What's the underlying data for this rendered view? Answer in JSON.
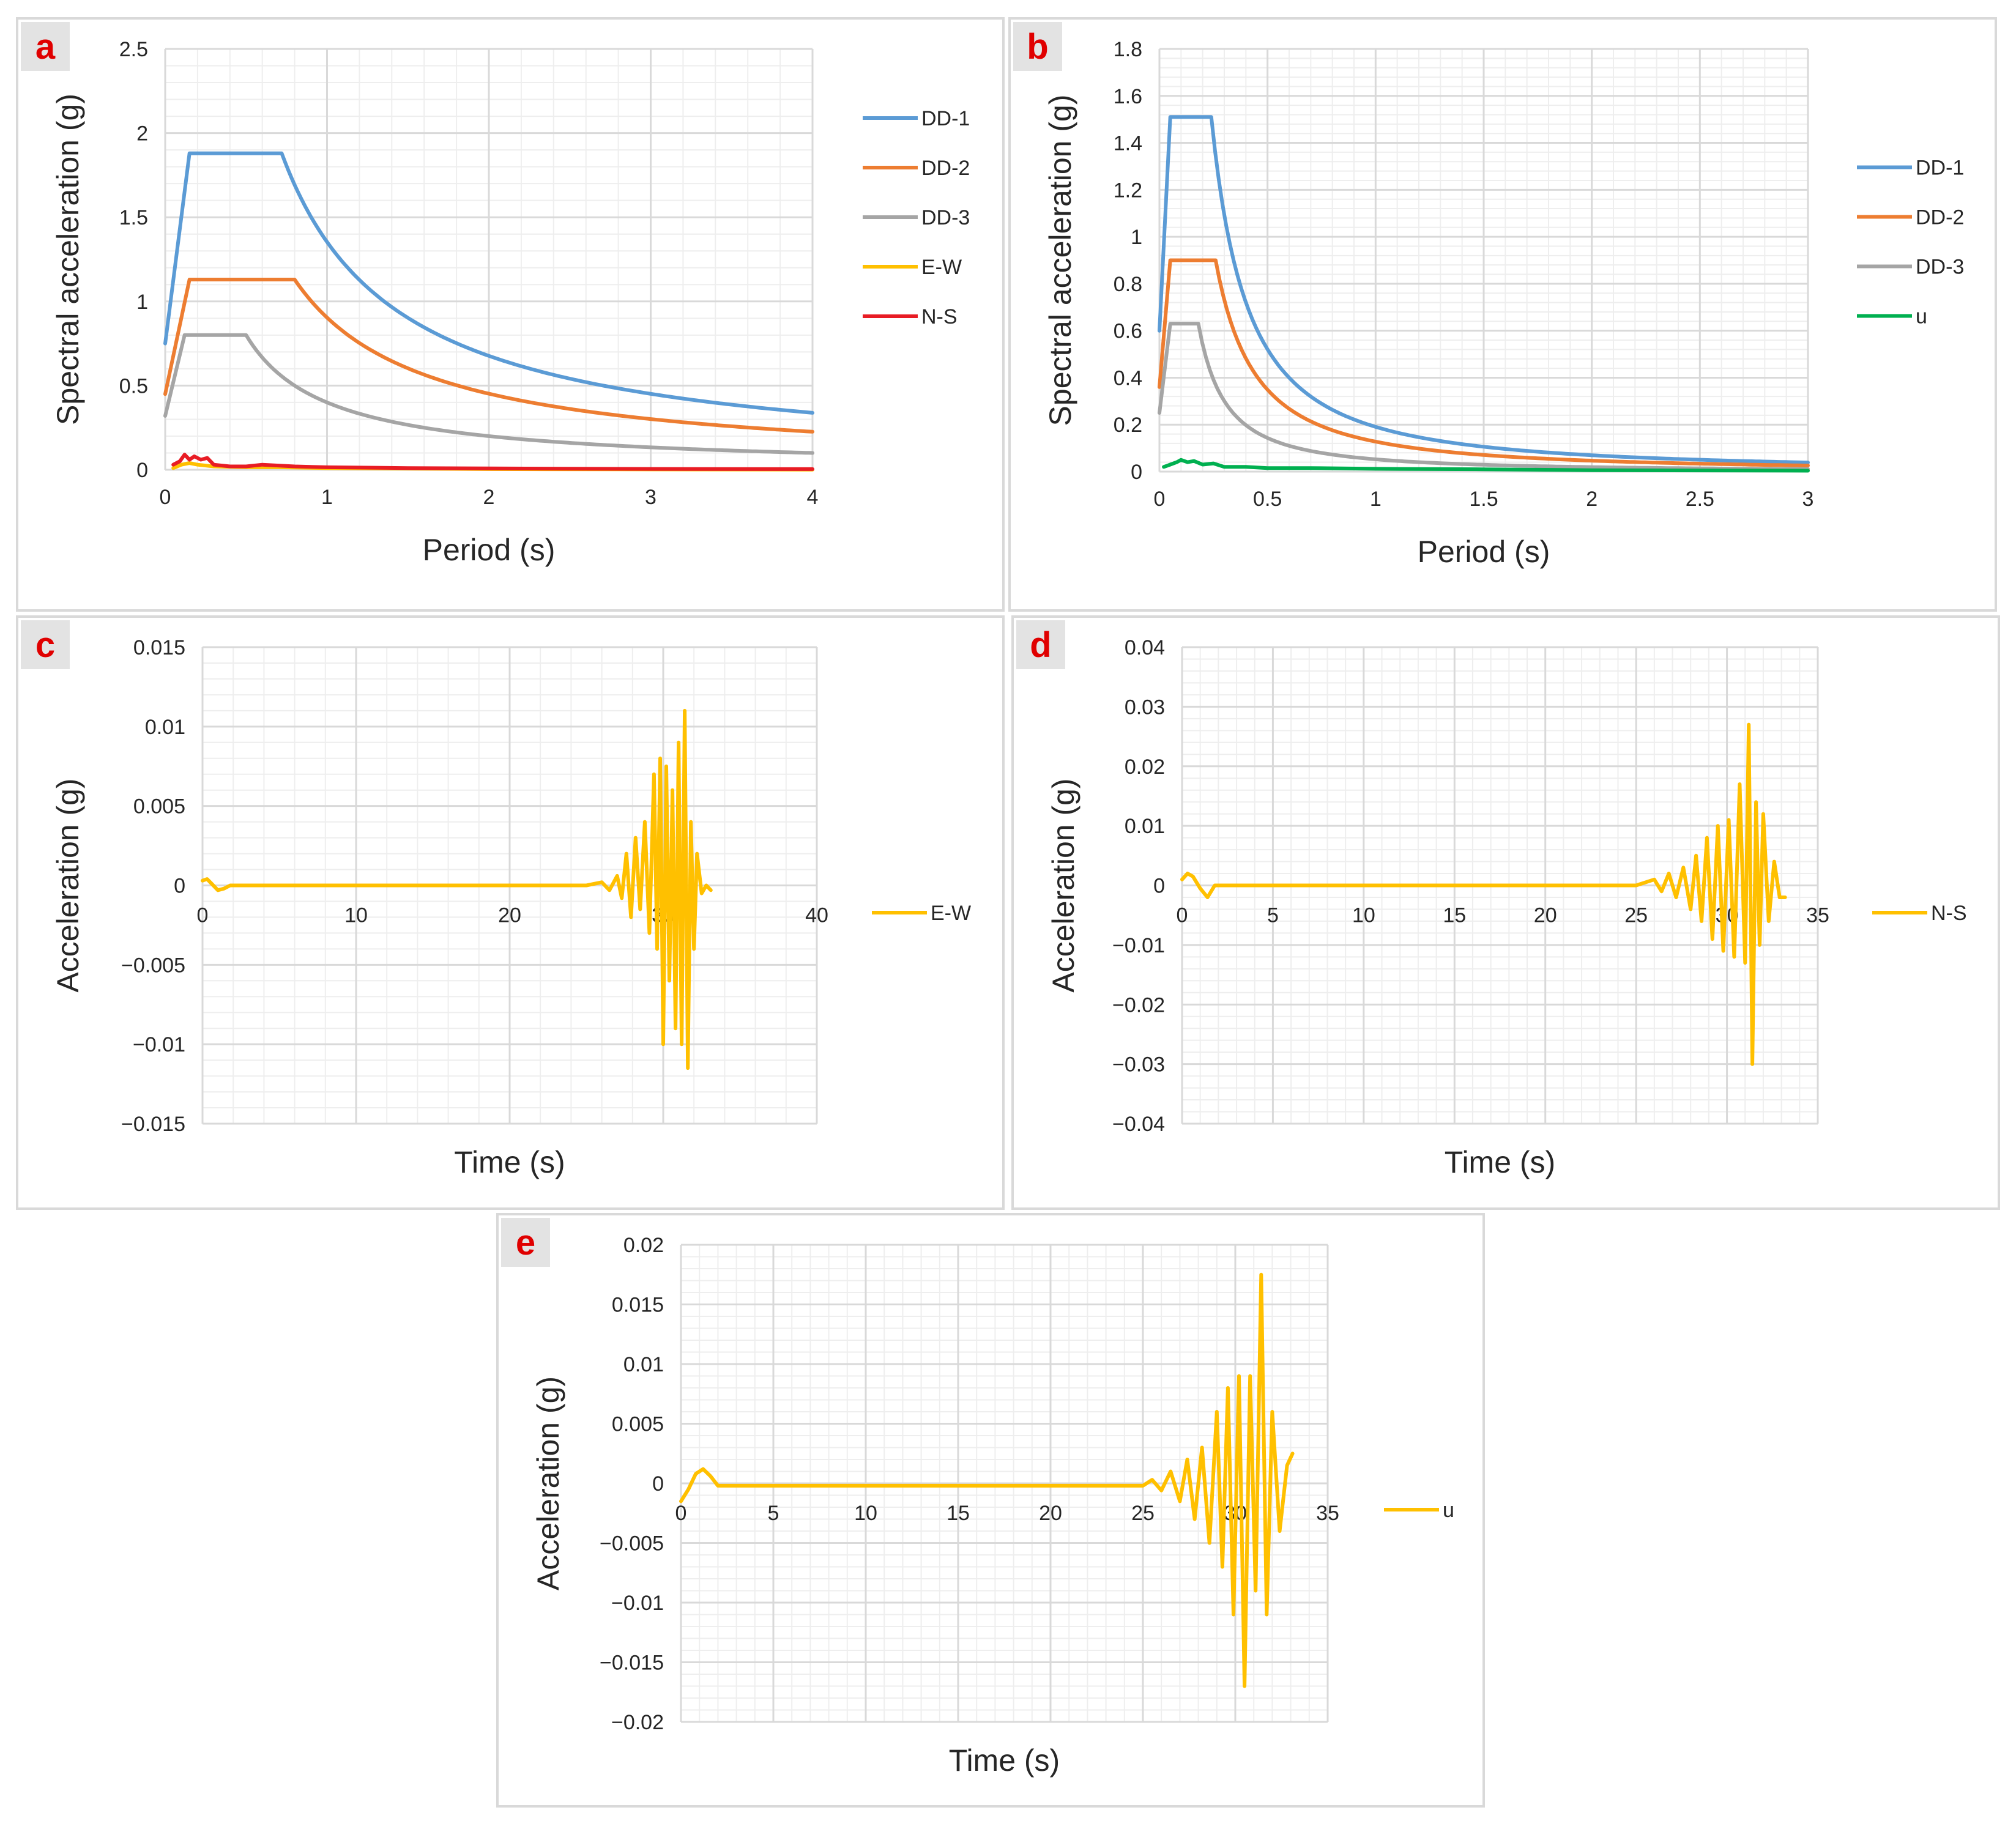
{
  "chart_data": [
    {
      "id": "a",
      "type": "line",
      "panel_label": "a",
      "xlabel": "Period (s)",
      "ylabel": "Spectral acceleration (g)",
      "xlim": [
        0,
        4
      ],
      "ylim": [
        0,
        2.5
      ],
      "xticks": [
        0,
        1,
        2,
        3,
        4
      ],
      "xtick_labels": [
        "0",
        "1",
        "2",
        "3",
        "4"
      ],
      "yticks": [
        0,
        0.5,
        1,
        1.5,
        2,
        2.5
      ],
      "ytick_labels": [
        "0",
        "0.5",
        "1",
        "1.5",
        "2",
        "2.5"
      ],
      "legend": "right",
      "series": [
        {
          "name": "DD-1",
          "color": "#5b9bd5",
          "kind": "spectrum",
          "pga": 0.75,
          "plateau": 1.88,
          "t_start": 0.15,
          "t_end": 0.72,
          "tail": "inverse"
        },
        {
          "name": "DD-2",
          "color": "#ed7d31",
          "kind": "spectrum",
          "pga": 0.45,
          "plateau": 1.13,
          "t_start": 0.15,
          "t_end": 0.8,
          "tail": "inverse"
        },
        {
          "name": "DD-3",
          "color": "#a5a5a5",
          "kind": "spectrum",
          "pga": 0.32,
          "plateau": 0.8,
          "t_start": 0.12,
          "t_end": 0.5,
          "tail": "inverse"
        },
        {
          "name": "E-W",
          "color": "#ffc000",
          "kind": "points",
          "x": [
            0.05,
            0.1,
            0.15,
            0.2,
            0.3,
            0.5,
            0.7,
            1.0,
            2.0,
            3.0,
            4.0
          ],
          "values": [
            0.01,
            0.03,
            0.04,
            0.03,
            0.02,
            0.015,
            0.015,
            0.01,
            0.004,
            0.002,
            0.001
          ]
        },
        {
          "name": "N-S",
          "color": "#e81c24",
          "kind": "points",
          "x": [
            0.05,
            0.09,
            0.12,
            0.15,
            0.18,
            0.22,
            0.26,
            0.3,
            0.4,
            0.5,
            0.6,
            0.7,
            0.8,
            1.0,
            1.5,
            2.0,
            3.0,
            4.0
          ],
          "values": [
            0.03,
            0.05,
            0.09,
            0.06,
            0.08,
            0.06,
            0.07,
            0.03,
            0.02,
            0.02,
            0.03,
            0.025,
            0.02,
            0.015,
            0.01,
            0.008,
            0.005,
            0.004
          ]
        }
      ]
    },
    {
      "id": "b",
      "type": "line",
      "panel_label": "b",
      "xlabel": "Period (s)",
      "ylabel": "Spectral acceleration (g)",
      "xlim": [
        0,
        3
      ],
      "ylim": [
        0,
        1.8
      ],
      "xticks": [
        0,
        0.5,
        1,
        1.5,
        2,
        2.5,
        3
      ],
      "xtick_labels": [
        "0",
        "0.5",
        "1",
        "1.5",
        "2",
        "2.5",
        "3"
      ],
      "yticks": [
        0,
        0.2,
        0.4,
        0.6,
        0.8,
        1,
        1.2,
        1.4,
        1.6,
        1.8
      ],
      "ytick_labels": [
        "0",
        "0.2",
        "0.4",
        "0.6",
        "0.8",
        "1",
        "1.2",
        "1.4",
        "1.6",
        "1.8"
      ],
      "legend": "right",
      "series": [
        {
          "name": "DD-1",
          "color": "#5b9bd5",
          "kind": "spectrum",
          "pga": 0.6,
          "plateau": 1.51,
          "t_start": 0.05,
          "t_end": 0.24,
          "tail": "inverse_square"
        },
        {
          "name": "DD-2",
          "color": "#ed7d31",
          "kind": "spectrum",
          "pga": 0.36,
          "plateau": 0.9,
          "t_start": 0.05,
          "t_end": 0.26,
          "tail": "inverse_square"
        },
        {
          "name": "DD-3",
          "color": "#a5a5a5",
          "kind": "spectrum",
          "pga": 0.25,
          "plateau": 0.63,
          "t_start": 0.05,
          "t_end": 0.18,
          "tail": "inverse_square"
        },
        {
          "name": "u",
          "color": "#00b050",
          "kind": "points",
          "x": [
            0.02,
            0.05,
            0.08,
            0.1,
            0.13,
            0.16,
            0.2,
            0.25,
            0.3,
            0.4,
            0.5,
            0.7,
            1.0,
            1.5,
            2.0,
            3.0
          ],
          "values": [
            0.02,
            0.03,
            0.04,
            0.05,
            0.04,
            0.045,
            0.03,
            0.035,
            0.02,
            0.02,
            0.015,
            0.015,
            0.012,
            0.01,
            0.006,
            0.004
          ]
        }
      ]
    },
    {
      "id": "c",
      "type": "line",
      "panel_label": "c",
      "xlabel": "Time (s)",
      "ylabel": "Acceleration (g)",
      "xlim": [
        0,
        40
      ],
      "ylim": [
        -0.015,
        0.015
      ],
      "xticks": [
        0,
        10,
        20,
        30,
        40
      ],
      "xtick_labels": [
        "0",
        "10",
        "20",
        "30",
        "40"
      ],
      "yticks": [
        -0.015,
        -0.01,
        -0.005,
        0,
        0.005,
        0.01,
        0.015
      ],
      "ytick_labels": [
        "-0.015",
        "-0.01",
        "-0.005",
        "0",
        "0.005",
        "0.01",
        "0.015"
      ],
      "legend": "right",
      "series": [
        {
          "name": "E-W",
          "color": "#ffc000",
          "kind": "points",
          "x": [
            0,
            0.3,
            0.6,
            1.0,
            1.4,
            1.8,
            2.2,
            5,
            10,
            15,
            20,
            25,
            26.0,
            26.5,
            27.0,
            27.3,
            27.6,
            27.9,
            28.2,
            28.5,
            28.8,
            29.1,
            29.4,
            29.6,
            29.8,
            30.0,
            30.2,
            30.4,
            30.6,
            30.8,
            31.0,
            31.2,
            31.4,
            31.6,
            31.8,
            32.0,
            32.2,
            32.5,
            32.8,
            33.1
          ],
          "values": [
            0.0003,
            0.0004,
            0.0001,
            -0.0003,
            -0.0002,
            0,
            0,
            0,
            0,
            0,
            0,
            0,
            0.0002,
            -0.0003,
            0.0006,
            -0.0008,
            0.002,
            -0.002,
            0.003,
            -0.0015,
            0.004,
            -0.003,
            0.007,
            -0.004,
            0.008,
            -0.01,
            0.0075,
            -0.006,
            0.006,
            -0.009,
            0.009,
            -0.01,
            0.011,
            -0.0115,
            0.004,
            -0.004,
            0.002,
            -0.0005,
            0,
            -0.0003
          ]
        }
      ]
    },
    {
      "id": "d",
      "type": "line",
      "panel_label": "d",
      "xlabel": "Time (s)",
      "ylabel": "Acceleration (g)",
      "xlim": [
        0,
        35
      ],
      "ylim": [
        -0.04,
        0.04
      ],
      "xticks": [
        0,
        5,
        10,
        15,
        20,
        25,
        30,
        35
      ],
      "xtick_labels": [
        "0",
        "5",
        "10",
        "15",
        "20",
        "25",
        "30",
        "35"
      ],
      "yticks": [
        -0.04,
        -0.03,
        -0.02,
        -0.01,
        0,
        0.01,
        0.02,
        0.03,
        0.04
      ],
      "ytick_labels": [
        "-0.04",
        "-0.03",
        "-0.02",
        "-0.01",
        "0",
        "0.01",
        "0.02",
        "0.03",
        "0.04"
      ],
      "legend": "right",
      "series": [
        {
          "name": "N-S",
          "color": "#ffc000",
          "kind": "points",
          "x": [
            0,
            0.3,
            0.6,
            1.0,
            1.4,
            1.8,
            5,
            10,
            15,
            20,
            25,
            26.0,
            26.4,
            26.8,
            27.2,
            27.6,
            28.0,
            28.3,
            28.6,
            28.9,
            29.2,
            29.5,
            29.8,
            30.1,
            30.4,
            30.7,
            31.0,
            31.2,
            31.4,
            31.6,
            31.8,
            32.0,
            32.3,
            32.6,
            32.9,
            33.2
          ],
          "values": [
            0.001,
            0.002,
            0.0015,
            -0.0005,
            -0.002,
            0,
            0,
            0,
            0,
            0,
            0,
            0.001,
            -0.001,
            0.002,
            -0.002,
            0.003,
            -0.004,
            0.005,
            -0.006,
            0.008,
            -0.009,
            0.01,
            -0.011,
            0.011,
            -0.012,
            0.017,
            -0.013,
            0.027,
            -0.03,
            0.014,
            -0.01,
            0.012,
            -0.006,
            0.004,
            -0.002,
            -0.002
          ]
        }
      ]
    },
    {
      "id": "e",
      "type": "line",
      "panel_label": "e",
      "xlabel": "Time (s)",
      "ylabel": "Acceleration (g)",
      "xlim": [
        0,
        35
      ],
      "ylim": [
        -0.02,
        0.02
      ],
      "xticks": [
        0,
        5,
        10,
        15,
        20,
        25,
        30,
        35
      ],
      "xtick_labels": [
        "0",
        "5",
        "10",
        "15",
        "20",
        "25",
        "30",
        "35"
      ],
      "yticks": [
        -0.02,
        -0.015,
        -0.01,
        -0.005,
        0,
        0.005,
        0.01,
        0.015,
        0.02
      ],
      "ytick_labels": [
        "-0.02",
        "-0.015",
        "-0.01",
        "-0.005",
        "0",
        "0.005",
        "0.01",
        "0.015",
        "0.02"
      ],
      "legend": "right",
      "series": [
        {
          "name": "u",
          "color": "#ffc000",
          "kind": "points",
          "x": [
            0,
            0.4,
            0.8,
            1.2,
            1.6,
            2.0,
            5,
            10,
            15,
            20,
            25,
            25.5,
            26.0,
            26.5,
            27.0,
            27.4,
            27.8,
            28.2,
            28.6,
            29.0,
            29.3,
            29.6,
            29.9,
            30.2,
            30.5,
            30.8,
            31.1,
            31.4,
            31.7,
            32.0,
            32.4,
            32.8,
            33.1
          ],
          "values": [
            -0.0015,
            -0.0005,
            0.0008,
            0.0012,
            0.0006,
            -0.0002,
            -0.0002,
            -0.0002,
            -0.0002,
            -0.0002,
            -0.0002,
            0.0003,
            -0.0006,
            0.001,
            -0.0015,
            0.002,
            -0.003,
            0.003,
            -0.005,
            0.006,
            -0.007,
            0.008,
            -0.011,
            0.009,
            -0.017,
            0.009,
            -0.009,
            0.0175,
            -0.011,
            0.006,
            -0.004,
            0.0015,
            0.0025
          ]
        }
      ]
    }
  ]
}
